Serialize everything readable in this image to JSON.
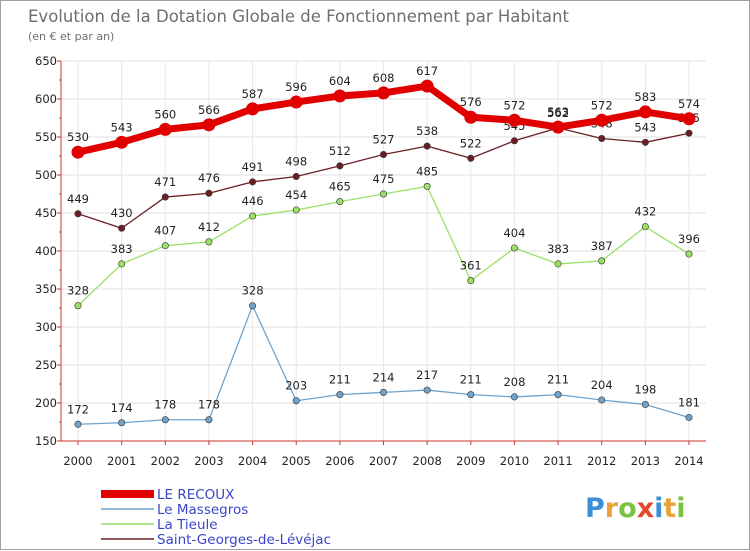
{
  "chart_data": {
    "type": "line",
    "title": "Evolution de la Dotation Globale de Fonctionnement par Habitant",
    "subtitle": "(en € et par an)",
    "xlabel": "",
    "ylabel": "",
    "ylim": [
      150,
      650
    ],
    "yticks": [
      150,
      200,
      250,
      300,
      350,
      400,
      450,
      500,
      550,
      600,
      650
    ],
    "categories": [
      "2000",
      "2001",
      "2002",
      "2003",
      "2004",
      "2005",
      "2006",
      "2007",
      "2008",
      "2009",
      "2010",
      "2011",
      "2012",
      "2013",
      "2014"
    ],
    "grid": true,
    "legend_position": "bottom-left",
    "series": [
      {
        "name": "Saint-Georges-de-Lévéjac",
        "color": "#6b1f24",
        "values": [
          449,
          430,
          471,
          476,
          491,
          498,
          512,
          527,
          538,
          522,
          545,
          562,
          548,
          543,
          555
        ],
        "labels": [
          "449",
          "430",
          "471",
          "476",
          "491",
          "498",
          "512",
          "527",
          "538",
          "522",
          "545",
          "562",
          "548",
          "543",
          "555"
        ]
      },
      {
        "name": "La Tieule",
        "color": "#99e065",
        "values": [
          328,
          383,
          407,
          412,
          446,
          454,
          465,
          475,
          485,
          361,
          404,
          383,
          387,
          432,
          396
        ],
        "labels": [
          "328",
          "383",
          "407",
          "412",
          "446",
          "454",
          "465",
          "475",
          "485",
          "361",
          "404",
          "383",
          "387",
          "432",
          "396"
        ]
      },
      {
        "name": "Le Massegros",
        "color": "#6fa3cc",
        "values": [
          172,
          174,
          178,
          178,
          328,
          203,
          211,
          214,
          217,
          211,
          208,
          211,
          204,
          198,
          181
        ],
        "labels": [
          "172",
          "174",
          "178",
          "178",
          "328",
          "203",
          "211",
          "214",
          "217",
          "211",
          "208",
          "211",
          "204",
          "198",
          "181"
        ]
      },
      {
        "name": "LE RECOUX",
        "color": "#ee0000",
        "values": [
          530,
          543,
          560,
          566,
          587,
          596,
          604,
          608,
          617,
          576,
          572,
          563,
          572,
          583,
          574
        ],
        "labels": [
          "530",
          "543",
          "560",
          "566",
          "587",
          "596",
          "604",
          "608",
          "617",
          "576",
          "572",
          "563",
          "572",
          "583",
          "574"
        ]
      }
    ],
    "legend": [
      "LE RECOUX",
      "Le Massegros",
      "La Tieule",
      "Saint-Georges-de-Lévéjac"
    ]
  },
  "branding": {
    "logo_text": "Proxiti",
    "letters": [
      {
        "ch": "P",
        "color": "#3a8fd6"
      },
      {
        "ch": "r",
        "color": "#e8a23a"
      },
      {
        "ch": "o",
        "color": "#7cc242"
      },
      {
        "ch": "x",
        "color": "#e04a2a"
      },
      {
        "ch": "i",
        "color": "#3a8fd6"
      },
      {
        "ch": "t",
        "color": "#e8a23a"
      },
      {
        "ch": "i",
        "color": "#7cc242"
      }
    ]
  }
}
